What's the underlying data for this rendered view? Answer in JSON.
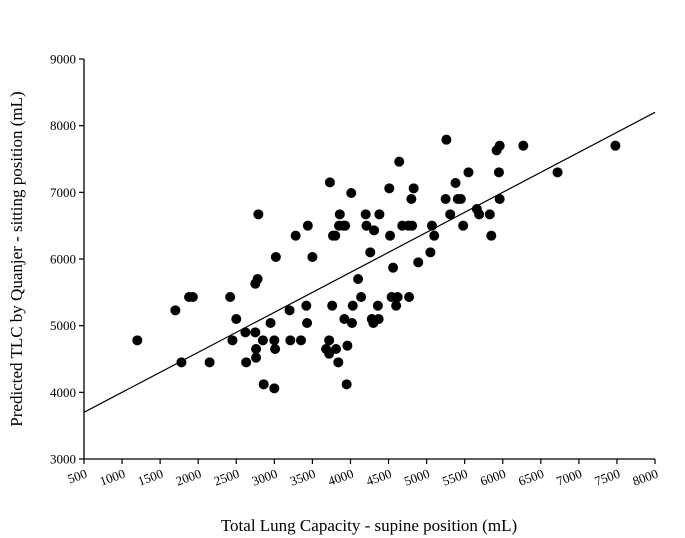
{
  "chart_data": {
    "type": "scatter",
    "title": "",
    "xlabel": "Total Lung Capacity - supine position (mL)",
    "ylabel": "Predicted TLC by Quanjer - sitting position (mL)",
    "xlim": [
      500,
      8000
    ],
    "ylim": [
      3000,
      9000
    ],
    "xticks": [
      500,
      1000,
      1500,
      2000,
      2500,
      3000,
      3500,
      4000,
      4500,
      5000,
      5500,
      6000,
      6500,
      7000,
      7500,
      8000
    ],
    "yticks": [
      3000,
      4000,
      5000,
      6000,
      7000,
      8000,
      9000
    ],
    "grid": false,
    "legend": "none",
    "trendline": {
      "x": [
        500,
        8000
      ],
      "y": [
        3700,
        8200
      ]
    },
    "points": [
      [
        1200,
        4780
      ],
      [
        1700,
        5230
      ],
      [
        1780,
        4450
      ],
      [
        1880,
        5430
      ],
      [
        1930,
        5430
      ],
      [
        2150,
        4450
      ],
      [
        2420,
        5430
      ],
      [
        2450,
        4780
      ],
      [
        2500,
        5100
      ],
      [
        2620,
        4900
      ],
      [
        2630,
        4450
      ],
      [
        2750,
        4900
      ],
      [
        2760,
        4650
      ],
      [
        2760,
        4520
      ],
      [
        2750,
        5630
      ],
      [
        2780,
        5700
      ],
      [
        2790,
        6670
      ],
      [
        2850,
        4780
      ],
      [
        2860,
        4120
      ],
      [
        2950,
        5040
      ],
      [
        3000,
        4060
      ],
      [
        3000,
        4780
      ],
      [
        3010,
        4650
      ],
      [
        3020,
        6030
      ],
      [
        3200,
        5230
      ],
      [
        3210,
        4780
      ],
      [
        3280,
        6350
      ],
      [
        3350,
        4780
      ],
      [
        3420,
        5300
      ],
      [
        3430,
        5040
      ],
      [
        3440,
        6500
      ],
      [
        3500,
        6030
      ],
      [
        3680,
        4650
      ],
      [
        3720,
        4580
      ],
      [
        3720,
        4780
      ],
      [
        3730,
        7150
      ],
      [
        3760,
        5300
      ],
      [
        3770,
        6350
      ],
      [
        3800,
        6350
      ],
      [
        3810,
        4650
      ],
      [
        3840,
        4450
      ],
      [
        3850,
        6500
      ],
      [
        3860,
        6670
      ],
      [
        3910,
        6500
      ],
      [
        3920,
        5100
      ],
      [
        3930,
        6500
      ],
      [
        3950,
        4120
      ],
      [
        3960,
        4700
      ],
      [
        4010,
        6990
      ],
      [
        4020,
        5040
      ],
      [
        4030,
        5300
      ],
      [
        4100,
        5700
      ],
      [
        4140,
        5430
      ],
      [
        4200,
        6670
      ],
      [
        4210,
        6500
      ],
      [
        4260,
        6100
      ],
      [
        4280,
        5100
      ],
      [
        4300,
        5040
      ],
      [
        4310,
        6430
      ],
      [
        4360,
        5300
      ],
      [
        4370,
        5100
      ],
      [
        4380,
        6670
      ],
      [
        4510,
        7060
      ],
      [
        4520,
        6350
      ],
      [
        4540,
        5430
      ],
      [
        4560,
        5870
      ],
      [
        4600,
        5300
      ],
      [
        4620,
        5430
      ],
      [
        4640,
        7460
      ],
      [
        4680,
        6500
      ],
      [
        4760,
        6500
      ],
      [
        4770,
        5430
      ],
      [
        4800,
        6900
      ],
      [
        4810,
        6500
      ],
      [
        4830,
        7060
      ],
      [
        4890,
        5950
      ],
      [
        5050,
        6100
      ],
      [
        5070,
        6500
      ],
      [
        5100,
        6350
      ],
      [
        5250,
        6900
      ],
      [
        5260,
        7790
      ],
      [
        5310,
        6670
      ],
      [
        5380,
        7140
      ],
      [
        5410,
        6900
      ],
      [
        5450,
        6900
      ],
      [
        5480,
        6500
      ],
      [
        5550,
        7300
      ],
      [
        5660,
        6750
      ],
      [
        5690,
        6670
      ],
      [
        5830,
        6670
      ],
      [
        5850,
        6350
      ],
      [
        5920,
        7630
      ],
      [
        5950,
        7300
      ],
      [
        5960,
        6900
      ],
      [
        5960,
        7700
      ],
      [
        6270,
        7700
      ],
      [
        6720,
        7300
      ],
      [
        7480,
        7700
      ]
    ]
  }
}
